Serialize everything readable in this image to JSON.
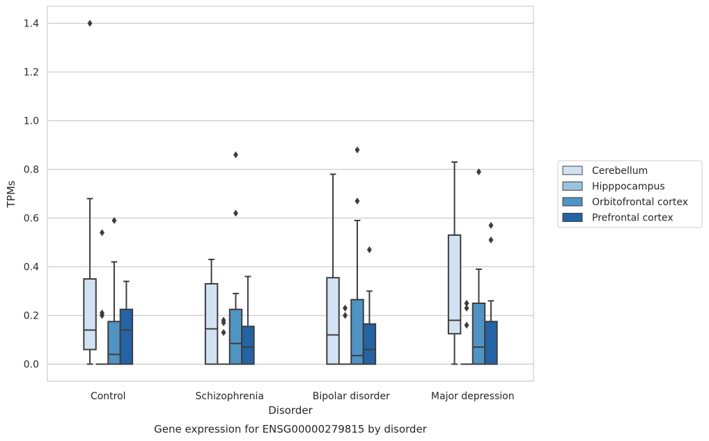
{
  "chart_data": {
    "type": "box",
    "xlabel": "Disorder",
    "ylabel": "TPMs",
    "caption": "Gene expression for ENSG00000279815 by disorder",
    "categories": [
      "Control",
      "Schizophrenia",
      "Bipolar disorder",
      "Major depression"
    ],
    "ylim": [
      -0.07,
      1.47
    ],
    "yticks": [
      "0.0",
      "0.2",
      "0.4",
      "0.6",
      "0.8",
      "1.0",
      "1.2",
      "1.4"
    ],
    "ytick_values": [
      0.0,
      0.2,
      0.4,
      0.6,
      0.8,
      1.0,
      1.2,
      1.4
    ],
    "grid": "horizontal",
    "legend_position": "right",
    "series": [
      {
        "name": "Cerebellum",
        "color": "#d3e2f2",
        "boxes": [
          {
            "whisker_low": 0.0,
            "q1": 0.06,
            "median": 0.14,
            "q3": 0.35,
            "whisker_high": 0.68,
            "outliers": [
              1.4
            ]
          },
          {
            "whisker_low": 0.0,
            "q1": 0.0,
            "median": 0.145,
            "q3": 0.33,
            "whisker_high": 0.43,
            "outliers": []
          },
          {
            "whisker_low": 0.0,
            "q1": 0.0,
            "median": 0.12,
            "q3": 0.355,
            "whisker_high": 0.78,
            "outliers": []
          },
          {
            "whisker_low": 0.0,
            "q1": 0.125,
            "median": 0.18,
            "q3": 0.53,
            "whisker_high": 0.83,
            "outliers": []
          }
        ]
      },
      {
        "name": "Hipppocampus",
        "color": "#9cc3de",
        "boxes": [
          {
            "whisker_low": 0.0,
            "q1": 0.0,
            "median": 0.0,
            "q3": 0.0,
            "whisker_high": 0.0,
            "outliers": [
              0.54,
              0.21,
              0.2
            ]
          },
          {
            "whisker_low": 0.0,
            "q1": 0.0,
            "median": 0.0,
            "q3": 0.0,
            "whisker_high": 0.0,
            "outliers": [
              0.18,
              0.17,
              0.13
            ]
          },
          {
            "whisker_low": 0.0,
            "q1": 0.0,
            "median": 0.0,
            "q3": 0.0,
            "whisker_high": 0.0,
            "outliers": [
              0.23,
              0.2
            ]
          },
          {
            "whisker_low": 0.0,
            "q1": 0.0,
            "median": 0.0,
            "q3": 0.0,
            "whisker_high": 0.0,
            "outliers": [
              0.25,
              0.23,
              0.16
            ]
          }
        ]
      },
      {
        "name": "Orbitofrontal cortex",
        "color": "#5094c4",
        "boxes": [
          {
            "whisker_low": 0.0,
            "q1": 0.0,
            "median": 0.04,
            "q3": 0.175,
            "whisker_high": 0.42,
            "outliers": [
              0.59
            ]
          },
          {
            "whisker_low": 0.0,
            "q1": 0.0,
            "median": 0.085,
            "q3": 0.225,
            "whisker_high": 0.29,
            "outliers": [
              0.86,
              0.62
            ]
          },
          {
            "whisker_low": 0.0,
            "q1": 0.0,
            "median": 0.035,
            "q3": 0.265,
            "whisker_high": 0.59,
            "outliers": [
              0.88,
              0.67
            ]
          },
          {
            "whisker_low": 0.0,
            "q1": 0.0,
            "median": 0.07,
            "q3": 0.25,
            "whisker_high": 0.39,
            "outliers": [
              0.79
            ]
          }
        ]
      },
      {
        "name": "Prefrontal cortex",
        "color": "#2463a4",
        "boxes": [
          {
            "whisker_low": 0.0,
            "q1": 0.0,
            "median": 0.14,
            "q3": 0.225,
            "whisker_high": 0.34,
            "outliers": []
          },
          {
            "whisker_low": 0.0,
            "q1": 0.0,
            "median": 0.07,
            "q3": 0.155,
            "whisker_high": 0.36,
            "outliers": []
          },
          {
            "whisker_low": 0.0,
            "q1": 0.0,
            "median": 0.06,
            "q3": 0.165,
            "whisker_high": 0.3,
            "outliers": [
              0.47
            ]
          },
          {
            "whisker_low": 0.0,
            "q1": 0.0,
            "median": 0.0,
            "q3": 0.175,
            "whisker_high": 0.26,
            "outliers": [
              0.57,
              0.51
            ]
          }
        ]
      }
    ]
  }
}
